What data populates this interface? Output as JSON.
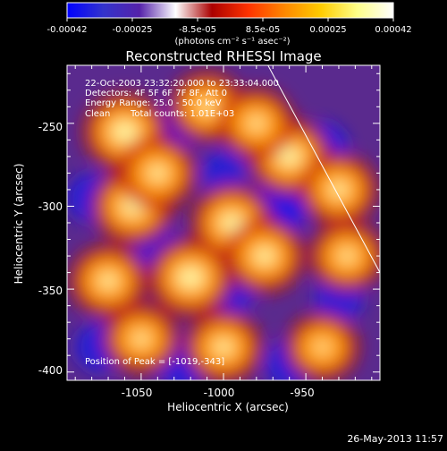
{
  "colorbar": {
    "tick_labels": [
      "-0.00042",
      "-0.00025",
      "-8.5e-05",
      "8.5e-05",
      "0.00025",
      "0.00042"
    ],
    "unit_label": "(photons cm⁻² s⁻¹ asec⁻²)",
    "colors": [
      "#0000ff",
      "#3333cc",
      "#5522aa",
      "#ffffff",
      "#aa0000",
      "#ff3300",
      "#ff8800",
      "#ffcc00",
      "#ffff88",
      "#ffffff"
    ],
    "range": [
      -0.00042,
      0.00042
    ]
  },
  "overlay": {
    "time_range": "22-Oct-2003 23:32:20.000 to 23:33:04.000",
    "detectors": "Detectors: 4F 5F 6F 7F 8F, Att 0",
    "energy": "Energy Range: 25.0 - 50.0 keV",
    "method": "Clean",
    "counts": "Total counts: 1.01E+03",
    "peak": "Position of Peak = [-1019,-343]"
  },
  "timestamp": "26-May-2013 11:57",
  "chart_data": {
    "type": "heatmap",
    "title": "Reconstructed RHESSI Image",
    "xlabel": "Heliocentric X (arcsec)",
    "ylabel": "Heliocentric Y (arcsec)",
    "xlim": [
      -1095,
      -905
    ],
    "ylim": [
      -405,
      -215
    ],
    "x_ticks": [
      "-1050",
      "-1000",
      "-950"
    ],
    "y_ticks": [
      "-250",
      "-300",
      "-350",
      "-400"
    ],
    "peak_position": [
      -1019,
      -343
    ],
    "blobs_positive": [
      [
        -1060,
        -255,
        1.0
      ],
      [
        -1055,
        -300,
        0.9
      ],
      [
        -1020,
        -343,
        1.0
      ],
      [
        -995,
        -310,
        0.9
      ],
      [
        -975,
        -330,
        0.8
      ],
      [
        -1040,
        -280,
        0.7
      ],
      [
        -960,
        -270,
        0.9
      ],
      [
        -930,
        -290,
        0.7
      ],
      [
        -1070,
        -345,
        0.7
      ],
      [
        -1010,
        -240,
        0.6
      ],
      [
        -980,
        -250,
        0.6
      ],
      [
        -1050,
        -380,
        0.6
      ],
      [
        -1000,
        -385,
        0.7
      ],
      [
        -925,
        -330,
        0.6
      ],
      [
        -940,
        -385,
        0.5
      ]
    ],
    "blobs_negative": [
      [
        -968,
        -302,
        1.0
      ],
      [
        -1025,
        -250,
        0.6
      ],
      [
        -1080,
        -295,
        0.6
      ],
      [
        -940,
        -265,
        0.7
      ],
      [
        -995,
        -350,
        0.6
      ],
      [
        -1040,
        -325,
        0.5
      ],
      [
        -930,
        -355,
        0.6
      ],
      [
        -1075,
        -385,
        0.6
      ],
      [
        -1025,
        -395,
        0.7
      ],
      [
        -960,
        -395,
        0.6
      ],
      [
        -1000,
        -280,
        0.5
      ]
    ],
    "limb_line": [
      [
        -973,
        -215
      ],
      [
        -905,
        -340
      ]
    ]
  }
}
